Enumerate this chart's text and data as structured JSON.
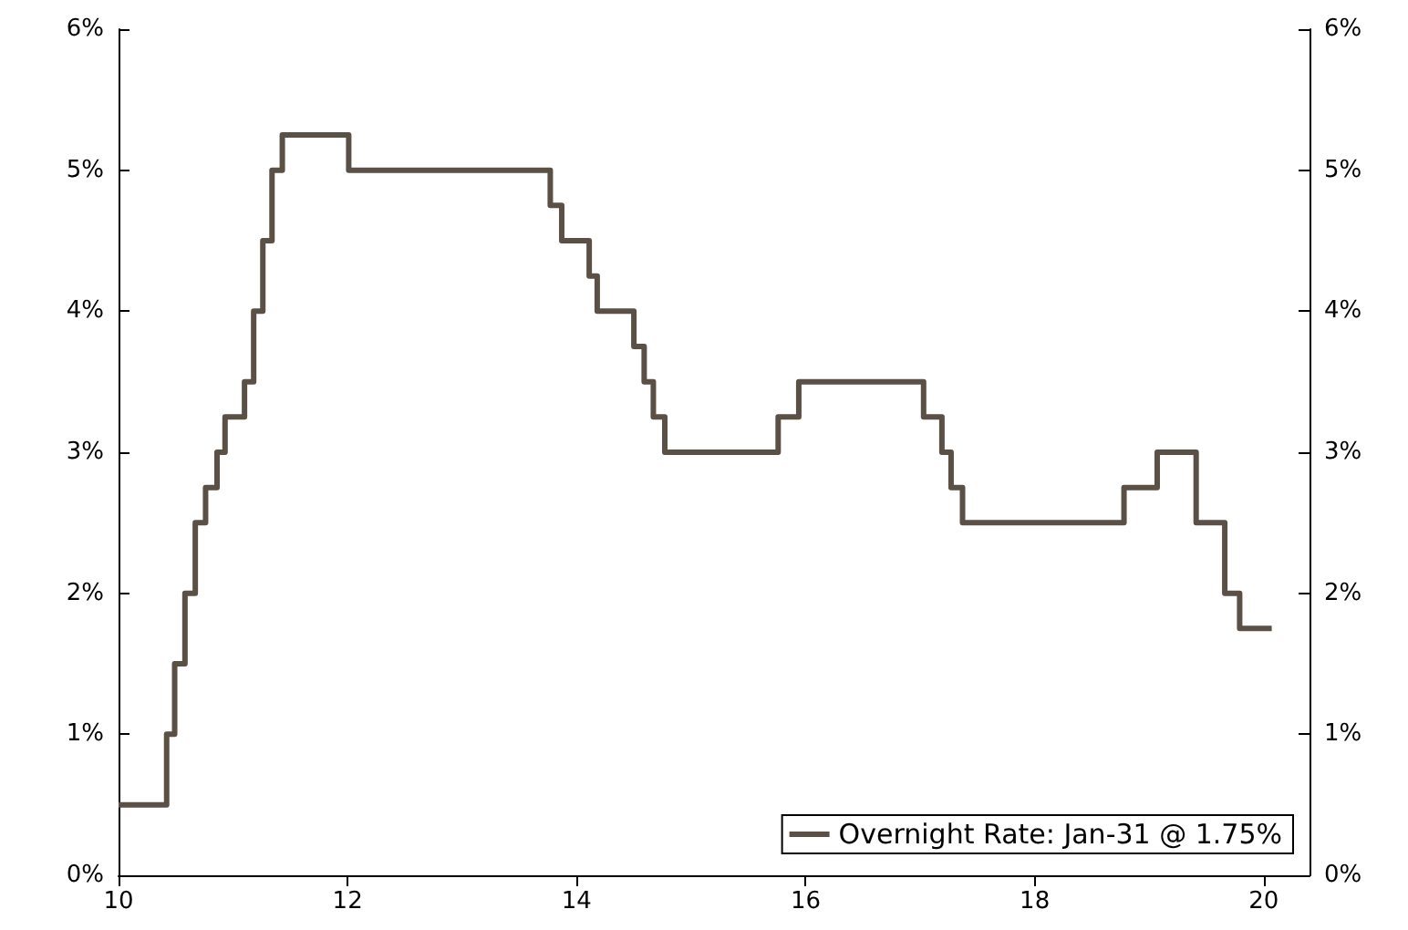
{
  "chart_data": {
    "type": "step",
    "x": [
      10,
      10.42,
      10.49,
      10.58,
      10.67,
      10.76,
      10.86,
      10.93,
      11.1,
      11.18,
      11.26,
      11.34,
      11.43,
      12.01,
      13.77,
      13.87,
      14.11,
      14.18,
      14.5,
      14.59,
      14.67,
      14.77,
      15.76,
      15.94,
      17.03,
      17.19,
      17.27,
      17.37,
      18.78,
      19.07,
      19.41,
      19.66,
      19.79,
      20.07
    ],
    "series": [
      {
        "name": "Overnight Rate: Jan-31 @ 1.75%",
        "color": "#5b5046",
        "values": [
          0.5,
          1,
          1.5,
          2,
          2.5,
          2.75,
          3,
          3.25,
          3.5,
          4,
          4.5,
          5,
          5.25,
          5,
          4.75,
          4.5,
          4.25,
          4,
          3.75,
          3.5,
          3.25,
          3,
          3.25,
          3.5,
          3.25,
          3,
          2.75,
          2.5,
          2.75,
          3,
          2.5,
          2,
          1.75,
          1.75
        ]
      }
    ],
    "xlim": [
      10,
      20.4
    ],
    "xticks": [
      10,
      12,
      14,
      16,
      18,
      20
    ],
    "ylim": [
      0,
      6
    ],
    "yticks": [
      {
        "value": 0,
        "label": "0%"
      },
      {
        "value": 1,
        "label": "1%"
      },
      {
        "value": 2,
        "label": "2%"
      },
      {
        "value": 3,
        "label": "3%"
      },
      {
        "value": 4,
        "label": "4%"
      },
      {
        "value": 5,
        "label": "5%"
      },
      {
        "value": 6,
        "label": "6%"
      }
    ],
    "y2lim": [
      0,
      6
    ],
    "y2ticks": [
      {
        "value": 0,
        "label": "0%"
      },
      {
        "value": 1,
        "label": "1%"
      },
      {
        "value": 2,
        "label": "2%"
      },
      {
        "value": 3,
        "label": "3%"
      },
      {
        "value": 4,
        "label": "4%"
      },
      {
        "value": 5,
        "label": "5%"
      },
      {
        "value": 6,
        "label": "6%"
      }
    ],
    "legend": "bottom right",
    "grid": false,
    "marker": "none",
    "line_style": "solid"
  }
}
